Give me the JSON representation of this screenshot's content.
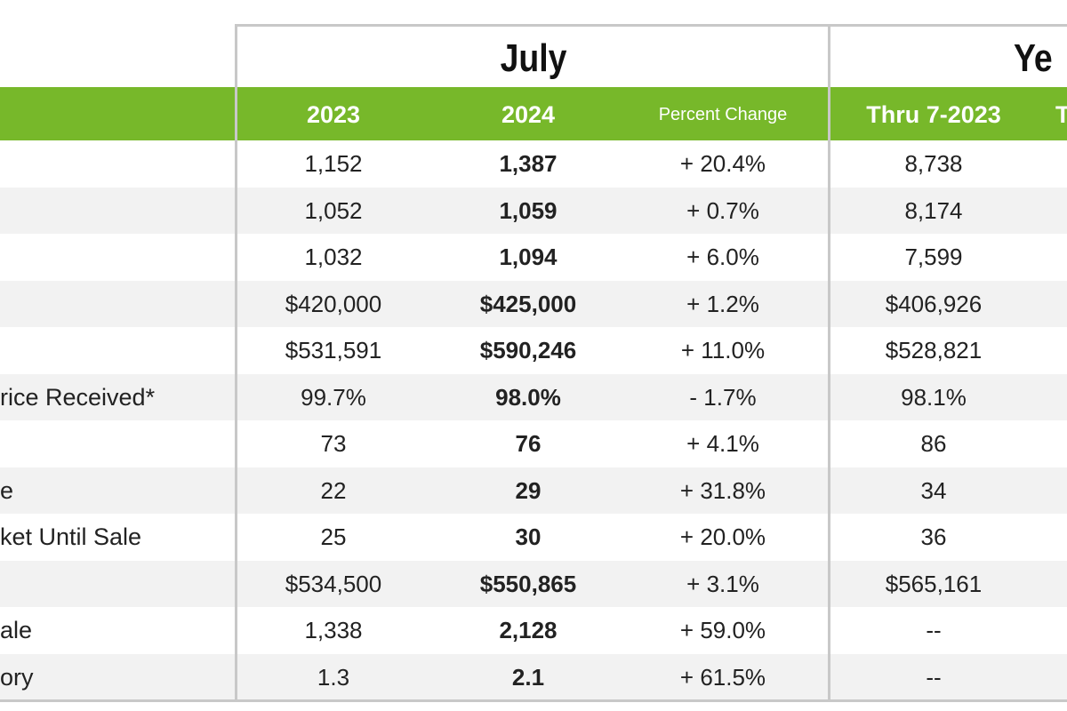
{
  "table": {
    "group_headers": [
      "July",
      "Ye"
    ],
    "columns": [
      "2023",
      "2024",
      "Percent Change",
      "Thru 7-2023",
      "T"
    ],
    "rows": [
      [
        null,
        "1,152",
        "1,387",
        "+ 20.4%",
        "8,738"
      ],
      [
        null,
        "1,052",
        "1,059",
        "+ 0.7%",
        "8,174"
      ],
      [
        null,
        "1,032",
        "1,094",
        "+ 6.0%",
        "7,599"
      ],
      [
        null,
        "$420,000",
        "$425,000",
        "+ 1.2%",
        "$406,926"
      ],
      [
        null,
        "$531,591",
        "$590,246",
        "+ 11.0%",
        "$528,821"
      ],
      [
        "rice Received*",
        "99.7%",
        "98.0%",
        "- 1.7%",
        "98.1%"
      ],
      [
        null,
        "73",
        "76",
        "+ 4.1%",
        "86"
      ],
      [
        "e",
        "22",
        "29",
        "+ 31.8%",
        "34"
      ],
      [
        "ket Until Sale",
        "25",
        "30",
        "+ 20.0%",
        "36"
      ],
      [
        null,
        "$534,500",
        "$550,865",
        "+ 3.1%",
        "$565,161"
      ],
      [
        "ale",
        "1,338",
        "2,128",
        "+ 59.0%",
        "--"
      ],
      [
        "ory",
        "1.3",
        "2.1",
        "+ 61.5%",
        "--"
      ]
    ]
  }
}
